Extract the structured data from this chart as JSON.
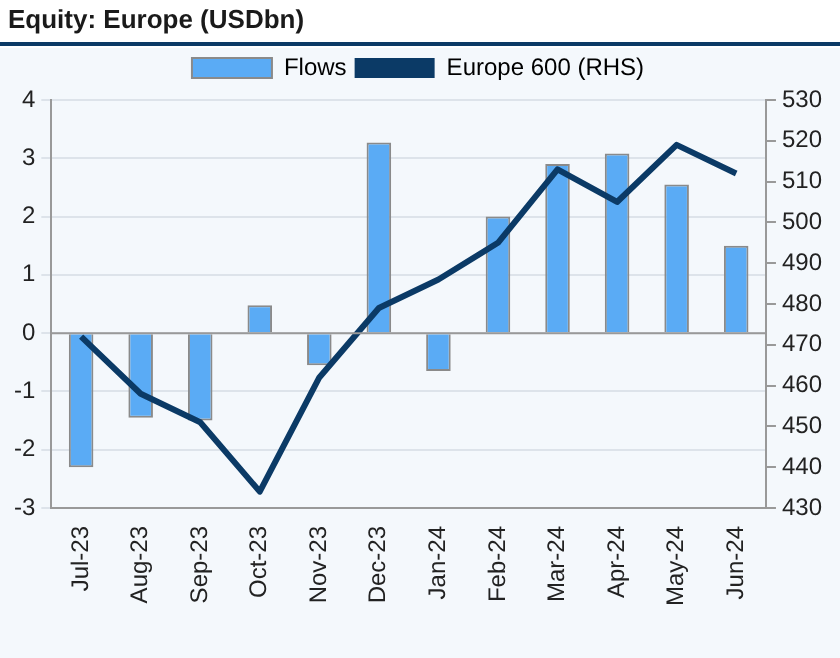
{
  "chart_data": {
    "type": "bar",
    "title": "Equity: Europe (USDbn)",
    "categories": [
      "Jul-23",
      "Aug-23",
      "Sep-23",
      "Oct-23",
      "Nov-23",
      "Dec-23",
      "Jan-24",
      "Feb-24",
      "Mar-24",
      "Apr-24",
      "May-24",
      "Jun-24"
    ],
    "series": [
      {
        "name": "Flows",
        "color": "#5aabf5",
        "values": [
          -2.3,
          -1.45,
          -1.5,
          0.48,
          -0.55,
          3.27,
          -0.65,
          2.0,
          2.9,
          3.08,
          2.55,
          1.5
        ]
      },
      {
        "name": "Europe 600 (RHS)",
        "type": "line",
        "axis": "y2",
        "color": "#0b3a66",
        "values": [
          472,
          458,
          451,
          434,
          462,
          479,
          486,
          495,
          513,
          505,
          519,
          512
        ]
      }
    ],
    "ylim": [
      -3,
      4
    ],
    "yticks": [
      -3,
      -2,
      -1,
      0,
      1,
      2,
      3,
      4
    ],
    "y2lim": [
      430,
      530
    ],
    "y2ticks": [
      430,
      440,
      450,
      460,
      470,
      480,
      490,
      500,
      510,
      520,
      530
    ],
    "grid": "y",
    "legend": "top",
    "marker": "none",
    "line_style": "solid"
  }
}
